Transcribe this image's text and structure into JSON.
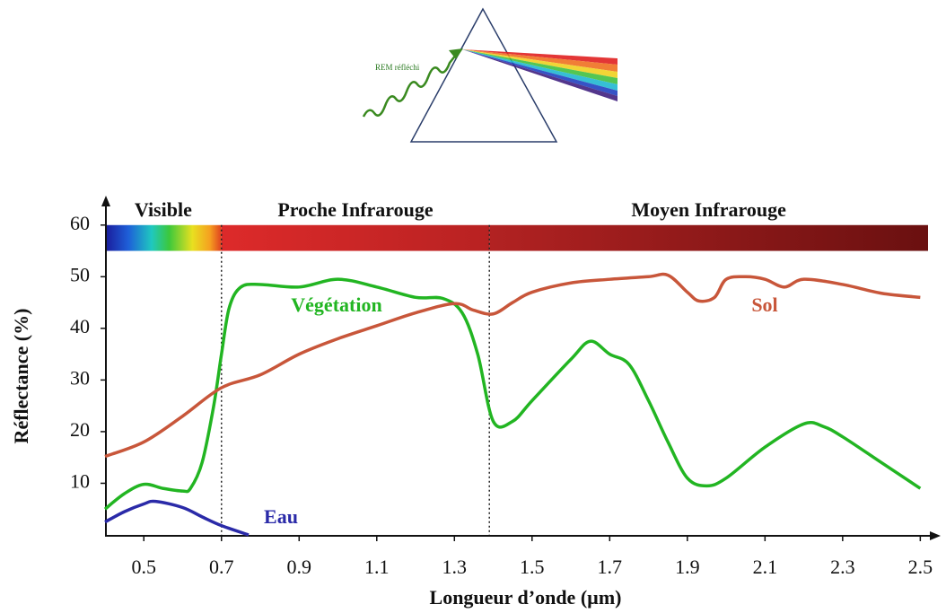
{
  "diagram": {
    "label": "REM réfléchi"
  },
  "chart_data": {
    "type": "line",
    "xlabel": "Longueur d’onde (µm)",
    "ylabel": "Réflectance (%)",
    "xlim": [
      0.4,
      2.52
    ],
    "ylim": [
      0,
      65
    ],
    "xticks": [
      0.5,
      0.7,
      0.9,
      1.1,
      1.3,
      1.5,
      1.7,
      1.9,
      2.1,
      2.3,
      2.5
    ],
    "yticks": [
      10,
      20,
      30,
      40,
      50,
      60
    ],
    "bar_range": [
      55,
      60
    ],
    "bands": [
      {
        "label": "Visible",
        "range": [
          0.4,
          0.7
        ]
      },
      {
        "label": "Proche Infrarouge",
        "range": [
          0.7,
          1.39
        ]
      },
      {
        "label": "Moyen Infrarouge",
        "range": [
          1.39,
          2.52
        ]
      }
    ],
    "series": [
      {
        "name": "Végétation",
        "color": "#22b522",
        "x": [
          0.4,
          0.45,
          0.5,
          0.55,
          0.6,
          0.62,
          0.65,
          0.68,
          0.7,
          0.72,
          0.75,
          0.8,
          0.9,
          1.0,
          1.1,
          1.2,
          1.27,
          1.32,
          1.36,
          1.4,
          1.45,
          1.5,
          1.6,
          1.65,
          1.7,
          1.75,
          1.8,
          1.85,
          1.9,
          1.95,
          2.0,
          2.1,
          2.2,
          2.25,
          2.3,
          2.4,
          2.5
        ],
        "values": [
          5,
          8,
          9.8,
          9,
          8.5,
          9,
          14,
          25,
          35,
          44,
          48,
          48.5,
          48,
          49.5,
          48,
          46,
          45.8,
          43,
          35,
          22,
          22,
          26,
          34,
          37.5,
          35,
          33,
          26,
          18,
          11,
          9.5,
          11,
          17,
          21.5,
          21,
          19,
          14,
          9
        ]
      },
      {
        "name": "Sol",
        "color": "#c8563a",
        "x": [
          0.4,
          0.5,
          0.6,
          0.7,
          0.8,
          0.9,
          1.0,
          1.1,
          1.2,
          1.3,
          1.35,
          1.4,
          1.45,
          1.5,
          1.6,
          1.7,
          1.8,
          1.85,
          1.9,
          1.93,
          1.97,
          2.0,
          2.05,
          2.1,
          2.15,
          2.2,
          2.3,
          2.4,
          2.5
        ],
        "values": [
          15.2,
          18,
          23,
          28.5,
          31,
          35,
          38,
          40.5,
          43,
          44.8,
          43.5,
          42.8,
          45,
          47,
          48.8,
          49.5,
          50,
          50.3,
          47,
          45.3,
          46,
          49.5,
          50,
          49.5,
          48,
          49.5,
          48.5,
          46.8,
          46
        ]
      },
      {
        "name": "Eau",
        "color": "#2a2aa8",
        "x": [
          0.4,
          0.45,
          0.5,
          0.53,
          0.6,
          0.65,
          0.7,
          0.77
        ],
        "values": [
          2.5,
          4.5,
          6,
          6.5,
          5.3,
          3.5,
          1.8,
          0
        ]
      }
    ]
  }
}
